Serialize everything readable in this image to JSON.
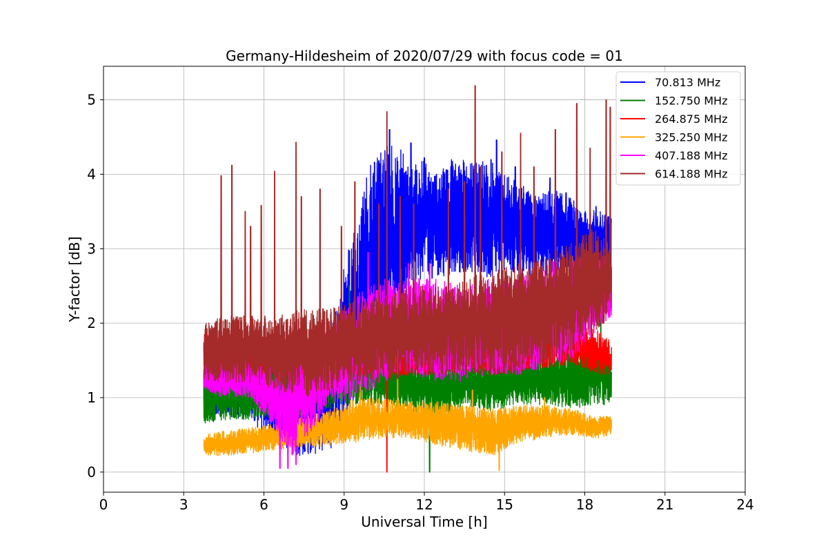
{
  "chart_data": {
    "type": "line",
    "title": "Germany-Hildesheim of 2020/07/29 with focus code = 01",
    "xlabel": "Universal Time [h]",
    "ylabel": "Y-factor [dB]",
    "xlim": [
      0,
      24
    ],
    "ylim": [
      -0.27,
      5.45
    ],
    "x_ticks": [
      0,
      3,
      6,
      9,
      12,
      15,
      18,
      21,
      24
    ],
    "x_tick_labels": [
      "0",
      "3",
      "6",
      "9",
      "12",
      "15",
      "18",
      "21",
      "24"
    ],
    "y_ticks": [
      0,
      1,
      2,
      3,
      4,
      5
    ],
    "y_tick_labels": [
      "0",
      "1",
      "2",
      "3",
      "4",
      "5"
    ],
    "grid": true,
    "legend_position": "top-right",
    "x_range_data": [
      3.75,
      19.0
    ],
    "series": [
      {
        "name": " 70.813 MHz",
        "color": "#0000ff",
        "x": [
          3.75,
          4.5,
          5.5,
          6.5,
          7.5,
          8.5,
          9.5,
          10.0,
          10.5,
          11.0,
          11.5,
          12.0,
          12.5,
          13.0,
          13.5,
          14.0,
          14.5,
          15.0,
          15.5,
          16.0,
          16.5,
          17.0,
          17.5,
          18.0,
          18.5,
          19.0
        ],
        "low": [
          0.7,
          0.75,
          0.7,
          0.3,
          0.2,
          0.3,
          0.9,
          1.4,
          1.5,
          2.0,
          2.4,
          2.6,
          2.6,
          2.6,
          2.7,
          2.6,
          2.6,
          2.7,
          2.6,
          2.6,
          2.6,
          2.7,
          2.6,
          2.6,
          2.6,
          2.6
        ],
        "high": [
          1.8,
          1.8,
          1.8,
          1.6,
          1.8,
          2.0,
          3.5,
          4.2,
          4.4,
          4.4,
          4.1,
          4.2,
          4.0,
          4.2,
          4.2,
          4.2,
          4.2,
          4.0,
          3.9,
          3.8,
          3.8,
          3.8,
          3.7,
          3.5,
          3.6,
          3.4
        ],
        "peaks": [
          [
            10.3,
            4.18
          ],
          [
            10.7,
            4.6
          ],
          [
            11.5,
            4.42
          ],
          [
            12.0,
            4.22
          ],
          [
            13.0,
            4.1
          ],
          [
            14.7,
            4.46
          ],
          [
            15.4,
            4.1
          ],
          [
            16.7,
            3.95
          ],
          [
            17.3,
            3.75
          ],
          [
            19.0,
            3.35
          ]
        ]
      },
      {
        "name": "152.750 MHz",
        "color": "#008000",
        "x": [
          3.75,
          4.5,
          5.5,
          6.5,
          7.5,
          8.5,
          9.5,
          10.5,
          11.5,
          12.5,
          13.5,
          14.5,
          15.5,
          16.5,
          17.5,
          18.5,
          19.0
        ],
        "low": [
          0.65,
          0.7,
          0.7,
          0.75,
          0.75,
          0.85,
          0.9,
          0.9,
          0.8,
          0.7,
          0.9,
          0.8,
          0.9,
          0.9,
          0.85,
          0.9,
          0.9
        ],
        "high": [
          1.3,
          1.35,
          1.4,
          1.45,
          1.5,
          1.6,
          1.65,
          1.6,
          1.6,
          1.55,
          1.55,
          1.5,
          1.6,
          1.6,
          1.7,
          1.75,
          1.5
        ],
        "peaks": [
          [
            8.2,
            2.02
          ],
          [
            9.2,
            2.5
          ],
          [
            12.2,
            0.0
          ],
          [
            14.3,
            1.7
          ],
          [
            18.6,
            2.12
          ]
        ]
      },
      {
        "name": "264.875 MHz",
        "color": "#ff0000",
        "x": [
          3.75,
          4.5,
          5.5,
          6.5,
          7.5,
          8.5,
          9.5,
          10.5,
          11.5,
          12.5,
          13.5,
          14.5,
          15.5,
          16.5,
          17.5,
          18.5,
          19.0
        ],
        "low": [
          1.5,
          1.3,
          1.3,
          1.25,
          1.2,
          1.3,
          1.3,
          1.25,
          1.3,
          1.3,
          1.35,
          1.3,
          1.35,
          1.4,
          1.45,
          1.3,
          1.3
        ],
        "high": [
          1.85,
          1.85,
          1.8,
          1.75,
          1.8,
          1.8,
          1.8,
          1.75,
          1.8,
          1.8,
          1.8,
          1.8,
          1.8,
          1.9,
          2.0,
          1.9,
          1.75
        ],
        "peaks": [
          [
            10.6,
            0.0
          ],
          [
            14.5,
            2.05
          ],
          [
            17.0,
            2.25
          ]
        ]
      },
      {
        "name": "325.250 MHz",
        "color": "#ffa500",
        "x": [
          3.75,
          4.5,
          5.5,
          6.5,
          7.5,
          8.5,
          9.5,
          10.5,
          11.5,
          12.5,
          13.5,
          14.5,
          15.5,
          16.5,
          17.5,
          18.5,
          19.0
        ],
        "low": [
          0.22,
          0.22,
          0.25,
          0.3,
          0.33,
          0.35,
          0.4,
          0.45,
          0.45,
          0.35,
          0.3,
          0.2,
          0.4,
          0.45,
          0.5,
          0.45,
          0.5
        ],
        "high": [
          0.5,
          0.55,
          0.6,
          0.65,
          0.75,
          0.85,
          1.0,
          1.0,
          0.95,
          0.95,
          0.9,
          0.85,
          0.9,
          0.9,
          0.85,
          0.75,
          0.75
        ],
        "peaks": [
          [
            9.6,
            1.25
          ],
          [
            11.0,
            1.25
          ],
          [
            13.8,
            1.1
          ],
          [
            14.8,
            0.02
          ],
          [
            16.5,
            1.0
          ]
        ]
      },
      {
        "name": "407.188 MHz",
        "color": "#ff00ff",
        "x": [
          3.75,
          4.5,
          5.5,
          6.5,
          7.0,
          7.5,
          8.5,
          9.5,
          10.5,
          11.5,
          12.5,
          13.5,
          14.5,
          15.5,
          16.5,
          17.5,
          18.5,
          19.0
        ],
        "low": [
          1.1,
          1.0,
          1.0,
          0.5,
          0.2,
          0.4,
          0.9,
          1.0,
          1.2,
          1.3,
          1.2,
          1.2,
          1.3,
          1.3,
          1.4,
          1.5,
          1.9,
          2.1
        ],
        "high": [
          1.5,
          1.5,
          1.5,
          1.4,
          1.5,
          1.6,
          2.0,
          2.4,
          2.6,
          2.6,
          2.6,
          2.5,
          2.6,
          2.6,
          2.8,
          2.9,
          3.0,
          2.8
        ],
        "peaks": [
          [
            6.6,
            0.05
          ],
          [
            6.9,
            0.05
          ],
          [
            7.2,
            0.1
          ],
          [
            9.9,
            2.95
          ],
          [
            11.4,
            2.8
          ],
          [
            12.2,
            2.8
          ],
          [
            18.2,
            3.3
          ]
        ]
      },
      {
        "name": "614.188 MHz",
        "color": "#a52a2a",
        "x": [
          3.75,
          4.5,
          5.5,
          6.5,
          7.5,
          8.5,
          9.5,
          10.5,
          11.5,
          12.5,
          13.5,
          14.5,
          15.5,
          16.5,
          17.5,
          18.5,
          19.0
        ],
        "low": [
          1.2,
          1.2,
          1.2,
          1.1,
          1.0,
          1.1,
          1.2,
          1.2,
          1.3,
          1.3,
          1.3,
          1.3,
          1.3,
          1.4,
          1.6,
          1.9,
          2.1
        ],
        "high": [
          2.0,
          2.1,
          2.1,
          2.1,
          2.2,
          2.2,
          2.3,
          2.4,
          2.5,
          2.5,
          2.6,
          2.7,
          2.8,
          2.9,
          3.1,
          3.3,
          3.0
        ],
        "peaks": [
          [
            4.4,
            3.98
          ],
          [
            4.8,
            4.12
          ],
          [
            5.3,
            3.5
          ],
          [
            5.5,
            3.3
          ],
          [
            5.9,
            3.58
          ],
          [
            6.4,
            4.04
          ],
          [
            7.2,
            4.43
          ],
          [
            7.4,
            3.7
          ],
          [
            8.1,
            3.8
          ],
          [
            8.9,
            3.3
          ],
          [
            9.4,
            3.9
          ],
          [
            10.3,
            3.6
          ],
          [
            10.6,
            4.84
          ],
          [
            11.1,
            3.7
          ],
          [
            11.6,
            3.6
          ],
          [
            12.9,
            3.8
          ],
          [
            13.5,
            3.9
          ],
          [
            13.9,
            5.19
          ],
          [
            14.1,
            4.1
          ],
          [
            14.9,
            4.3
          ],
          [
            15.6,
            4.55
          ],
          [
            16.1,
            4.1
          ],
          [
            16.9,
            4.6
          ],
          [
            17.7,
            4.95
          ],
          [
            18.2,
            4.35
          ],
          [
            18.8,
            5.0
          ],
          [
            18.95,
            4.9
          ]
        ]
      }
    ]
  }
}
